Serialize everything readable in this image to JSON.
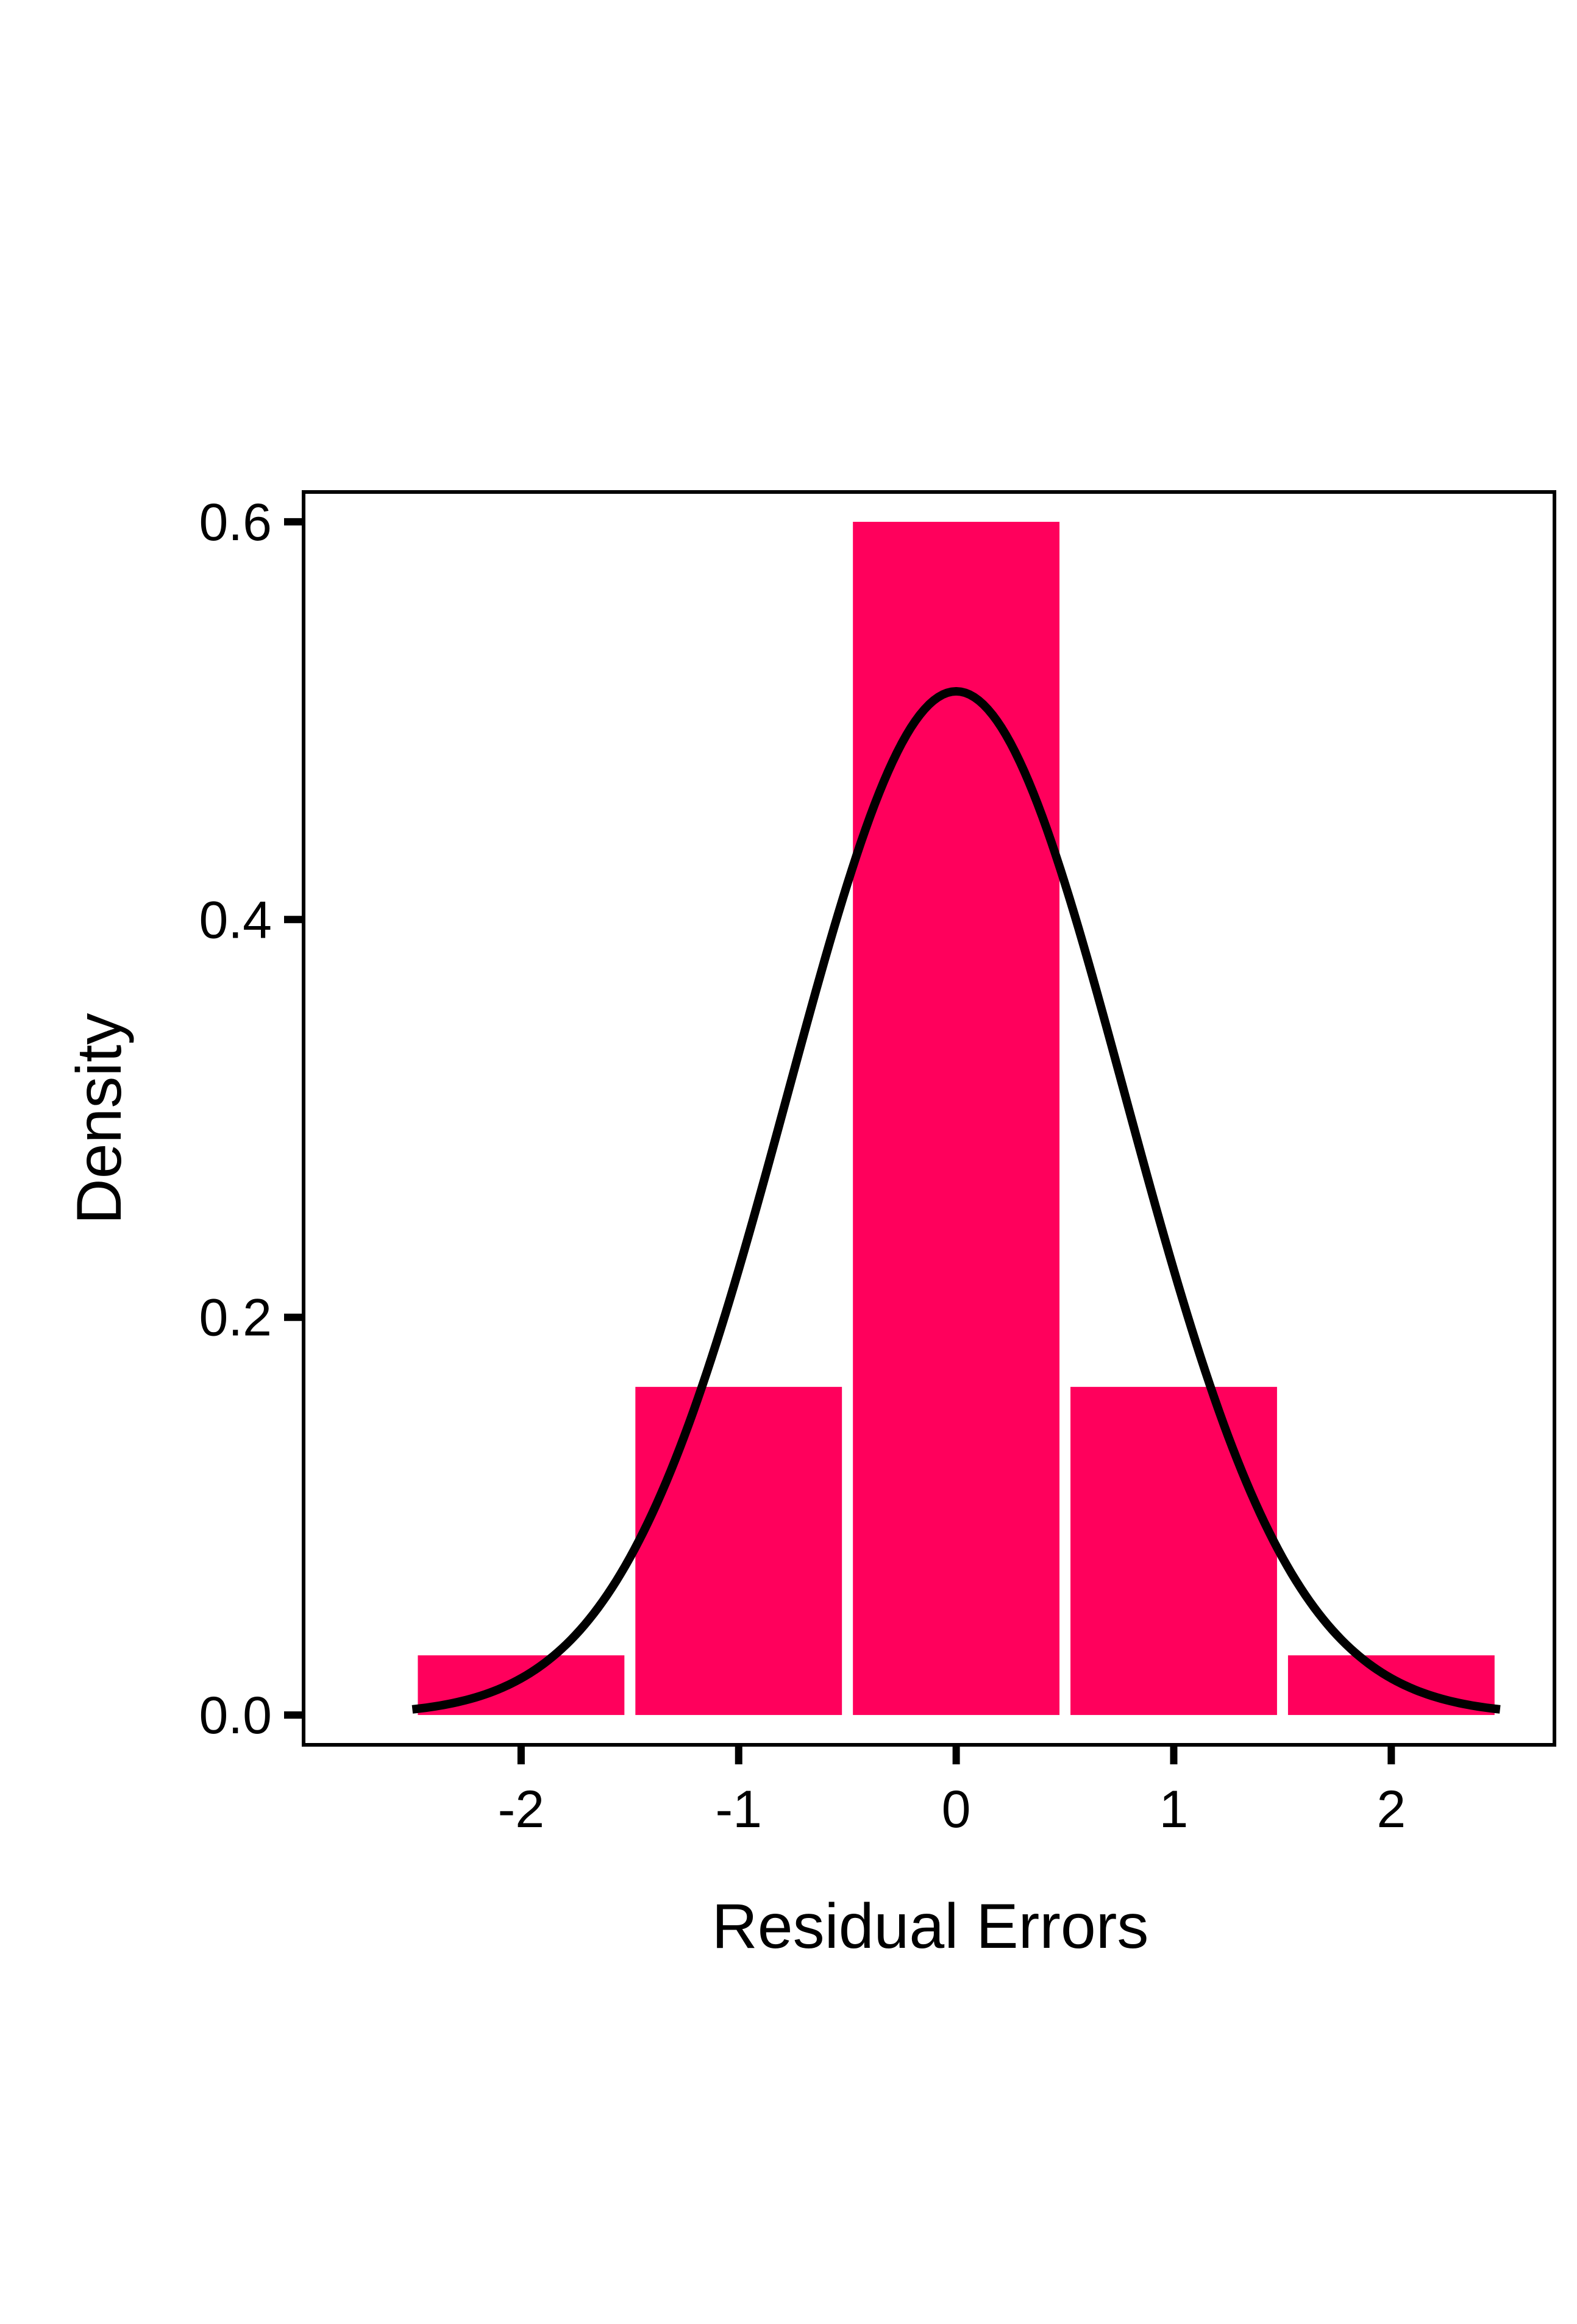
{
  "chart_data": {
    "type": "bar",
    "title": "",
    "xlabel": "Residual Errors",
    "ylabel": "Density",
    "xlim": [
      -3.0,
      2.75
    ],
    "ylim": [
      -0.015,
      0.615
    ],
    "x_ticks": [
      "-2",
      "-1",
      "0",
      "1",
      "2"
    ],
    "y_ticks": [
      "0.0",
      "0.2",
      "0.4",
      "0.6"
    ],
    "grid": false,
    "legend": "none",
    "bars": [
      {
        "x_start": -2.5,
        "x_end": -1.5,
        "density": 0.03
      },
      {
        "x_start": -1.5,
        "x_end": -0.5,
        "density": 0.165
      },
      {
        "x_start": -0.5,
        "x_end": 0.5,
        "density": 0.6
      },
      {
        "x_start": 0.5,
        "x_end": 1.5,
        "density": 0.165
      },
      {
        "x_start": 1.5,
        "x_end": 2.5,
        "density": 0.03
      }
    ],
    "curve": {
      "type": "normal-density",
      "mean": 0,
      "sd": 0.775,
      "x_range": [
        -2.5,
        2.5
      ]
    },
    "colors": {
      "bars": "#ff005c",
      "curve": "#000000",
      "frame": "#000000"
    }
  }
}
